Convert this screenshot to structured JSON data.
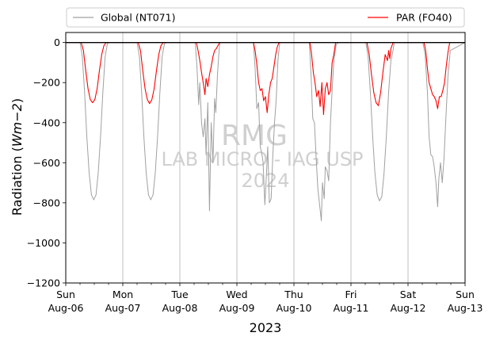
{
  "chart_data": {
    "type": "line",
    "title": "",
    "xlabel": "2023",
    "ylabel": "Radiation (Wm−2)",
    "ylabel_main": "Radiation (",
    "ylabel_unit": "Wm−2",
    "ylabel_close": ")",
    "ylim": [
      -1200,
      50
    ],
    "yticks": [
      0,
      -200,
      -400,
      -600,
      -800,
      -1000,
      -1200
    ],
    "ytick_labels": [
      "0",
      "−200",
      "−400",
      "−600",
      "−800",
      "−1000",
      "−1200"
    ],
    "xlim": [
      0,
      7
    ],
    "xticks": [
      {
        "x": 0,
        "day": "Sun",
        "date": "Aug-06"
      },
      {
        "x": 1,
        "day": "Mon",
        "date": "Aug-07"
      },
      {
        "x": 2,
        "day": "Tue",
        "date": "Aug-08"
      },
      {
        "x": 3,
        "day": "Wed",
        "date": "Aug-09"
      },
      {
        "x": 4,
        "day": "Thu",
        "date": "Aug-10"
      },
      {
        "x": 5,
        "day": "Fri",
        "date": "Aug-11"
      },
      {
        "x": 6,
        "day": "Sat",
        "date": "Aug-12"
      },
      {
        "x": 7,
        "day": "Sun",
        "date": "Aug-13"
      }
    ],
    "grid_x": true,
    "legend_position": "top",
    "series": [
      {
        "name": "Global (NT071)",
        "color": "#a0a0a0",
        "x": [
          0,
          0.25,
          0.29,
          0.33,
          0.37,
          0.41,
          0.45,
          0.49,
          0.53,
          0.57,
          0.61,
          0.65,
          0.69,
          0.73,
          0.77,
          1.25,
          1.29,
          1.33,
          1.37,
          1.41,
          1.45,
          1.49,
          1.53,
          1.57,
          1.61,
          1.65,
          1.69,
          1.73,
          1.77,
          2.27,
          2.3,
          2.33,
          2.35,
          2.38,
          2.41,
          2.44,
          2.46,
          2.49,
          2.52,
          2.55,
          2.58,
          2.61,
          2.63,
          2.66,
          2.68,
          2.7,
          3.29,
          3.32,
          3.35,
          3.38,
          3.41,
          3.44,
          3.46,
          3.49,
          3.52,
          3.54,
          3.57,
          3.6,
          3.63,
          3.66,
          3.69,
          3.72,
          3.75,
          4.27,
          4.3,
          4.33,
          4.36,
          4.39,
          4.42,
          4.45,
          4.48,
          4.5,
          4.53,
          4.55,
          4.58,
          4.61,
          4.64,
          4.67,
          4.7,
          4.74,
          4.78,
          5.26,
          5.3,
          5.34,
          5.38,
          5.42,
          5.46,
          5.5,
          5.54,
          5.58,
          5.62,
          5.66,
          5.7,
          5.73,
          5.76,
          6.26,
          6.3,
          6.34,
          6.37,
          6.4,
          6.43,
          6.46,
          6.49,
          6.52,
          6.54,
          6.57,
          6.6,
          6.63,
          6.66,
          6.7,
          6.74,
          7
        ],
        "values": [
          0,
          0,
          -70,
          -250,
          -470,
          -650,
          -760,
          -785,
          -760,
          -650,
          -470,
          -250,
          -70,
          -5,
          0,
          0,
          -70,
          -250,
          -470,
          -650,
          -760,
          -785,
          -760,
          -650,
          -470,
          -250,
          -70,
          -5,
          0,
          0,
          -120,
          -310,
          -200,
          -400,
          -470,
          -380,
          -560,
          -300,
          -840,
          -400,
          -600,
          -280,
          -350,
          -160,
          -70,
          0,
          0,
          -130,
          -330,
          -300,
          -520,
          -560,
          -600,
          -810,
          -650,
          -520,
          -800,
          -780,
          -560,
          -400,
          -280,
          -90,
          0,
          0,
          -160,
          -380,
          -400,
          -580,
          -730,
          -810,
          -890,
          -700,
          -780,
          -620,
          -640,
          -690,
          -400,
          -240,
          -90,
          -10,
          0,
          0,
          -70,
          -250,
          -470,
          -650,
          -760,
          -790,
          -770,
          -650,
          -470,
          -250,
          -90,
          -50,
          0,
          0,
          -60,
          -250,
          -470,
          -560,
          -570,
          -620,
          -700,
          -820,
          -680,
          -600,
          -700,
          -580,
          -400,
          -170,
          -40,
          0
        ]
      },
      {
        "name": "PAR (FO40)",
        "color": "#ff0000",
        "x": [
          0,
          0.27,
          0.31,
          0.35,
          0.39,
          0.43,
          0.47,
          0.51,
          0.55,
          0.59,
          0.63,
          0.67,
          0.71,
          0.75,
          1.27,
          1.31,
          1.35,
          1.39,
          1.43,
          1.47,
          1.51,
          1.55,
          1.59,
          1.63,
          1.67,
          1.71,
          1.75,
          2.29,
          2.32,
          2.35,
          2.38,
          2.41,
          2.44,
          2.46,
          2.49,
          2.52,
          2.55,
          2.58,
          2.61,
          2.64,
          2.67,
          2.7,
          3.29,
          3.32,
          3.35,
          3.38,
          3.41,
          3.44,
          3.47,
          3.5,
          3.53,
          3.56,
          3.59,
          3.62,
          3.65,
          3.68,
          3.71,
          3.74,
          4.28,
          4.31,
          4.34,
          4.37,
          4.4,
          4.43,
          4.46,
          4.49,
          4.52,
          4.55,
          4.58,
          4.61,
          4.64,
          4.67,
          4.7,
          4.73,
          5.28,
          5.32,
          5.36,
          5.4,
          5.44,
          5.48,
          5.52,
          5.56,
          5.6,
          5.64,
          5.66,
          5.68,
          5.7,
          5.72,
          5.74,
          6.28,
          6.31,
          6.34,
          6.37,
          6.4,
          6.43,
          6.46,
          6.49,
          6.52,
          6.55,
          6.58,
          6.61,
          6.64,
          6.67,
          6.7,
          6.73,
          7
        ],
        "values": [
          0,
          0,
          -40,
          -140,
          -230,
          -285,
          -300,
          -285,
          -230,
          -140,
          -60,
          -15,
          0,
          0,
          0,
          -40,
          -140,
          -230,
          -285,
          -305,
          -285,
          -230,
          -140,
          -60,
          -15,
          0,
          0,
          0,
          -40,
          -90,
          -150,
          -200,
          -260,
          -180,
          -220,
          -160,
          -120,
          -70,
          -40,
          -30,
          -15,
          0,
          0,
          -40,
          -110,
          -200,
          -240,
          -230,
          -290,
          -270,
          -350,
          -260,
          -200,
          -180,
          -120,
          -60,
          -20,
          0,
          0,
          -60,
          -150,
          -200,
          -270,
          -240,
          -320,
          -200,
          -360,
          -230,
          -200,
          -260,
          -240,
          -100,
          -60,
          0,
          0,
          -60,
          -160,
          -250,
          -300,
          -315,
          -250,
          -150,
          -60,
          -90,
          -40,
          -80,
          -30,
          -15,
          0,
          0,
          -40,
          -130,
          -200,
          -230,
          -260,
          -270,
          -290,
          -330,
          -270,
          -270,
          -240,
          -200,
          -120,
          -50,
          0,
          0
        ]
      }
    ]
  },
  "watermark": {
    "line1": "RMG",
    "line2": "LAB MICRO - IAG USP",
    "line3": "2024"
  }
}
